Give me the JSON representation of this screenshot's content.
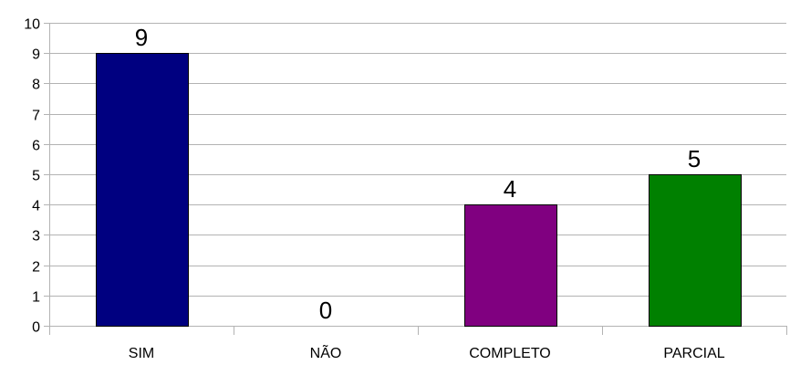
{
  "chart_data": {
    "type": "bar",
    "categories": [
      "SIM",
      "NÃO",
      "COMPLETO",
      "PARCIAL"
    ],
    "values": [
      9,
      0,
      4,
      5
    ],
    "colors": [
      "#000080",
      "#ff420e",
      "#800080",
      "#008000"
    ],
    "data_labels": [
      "9",
      "0",
      "4",
      "5"
    ],
    "yticks": [
      0,
      1,
      2,
      3,
      4,
      5,
      6,
      7,
      8,
      9,
      10
    ],
    "ylim": [
      0,
      10
    ],
    "grid": true,
    "legend": "none"
  }
}
